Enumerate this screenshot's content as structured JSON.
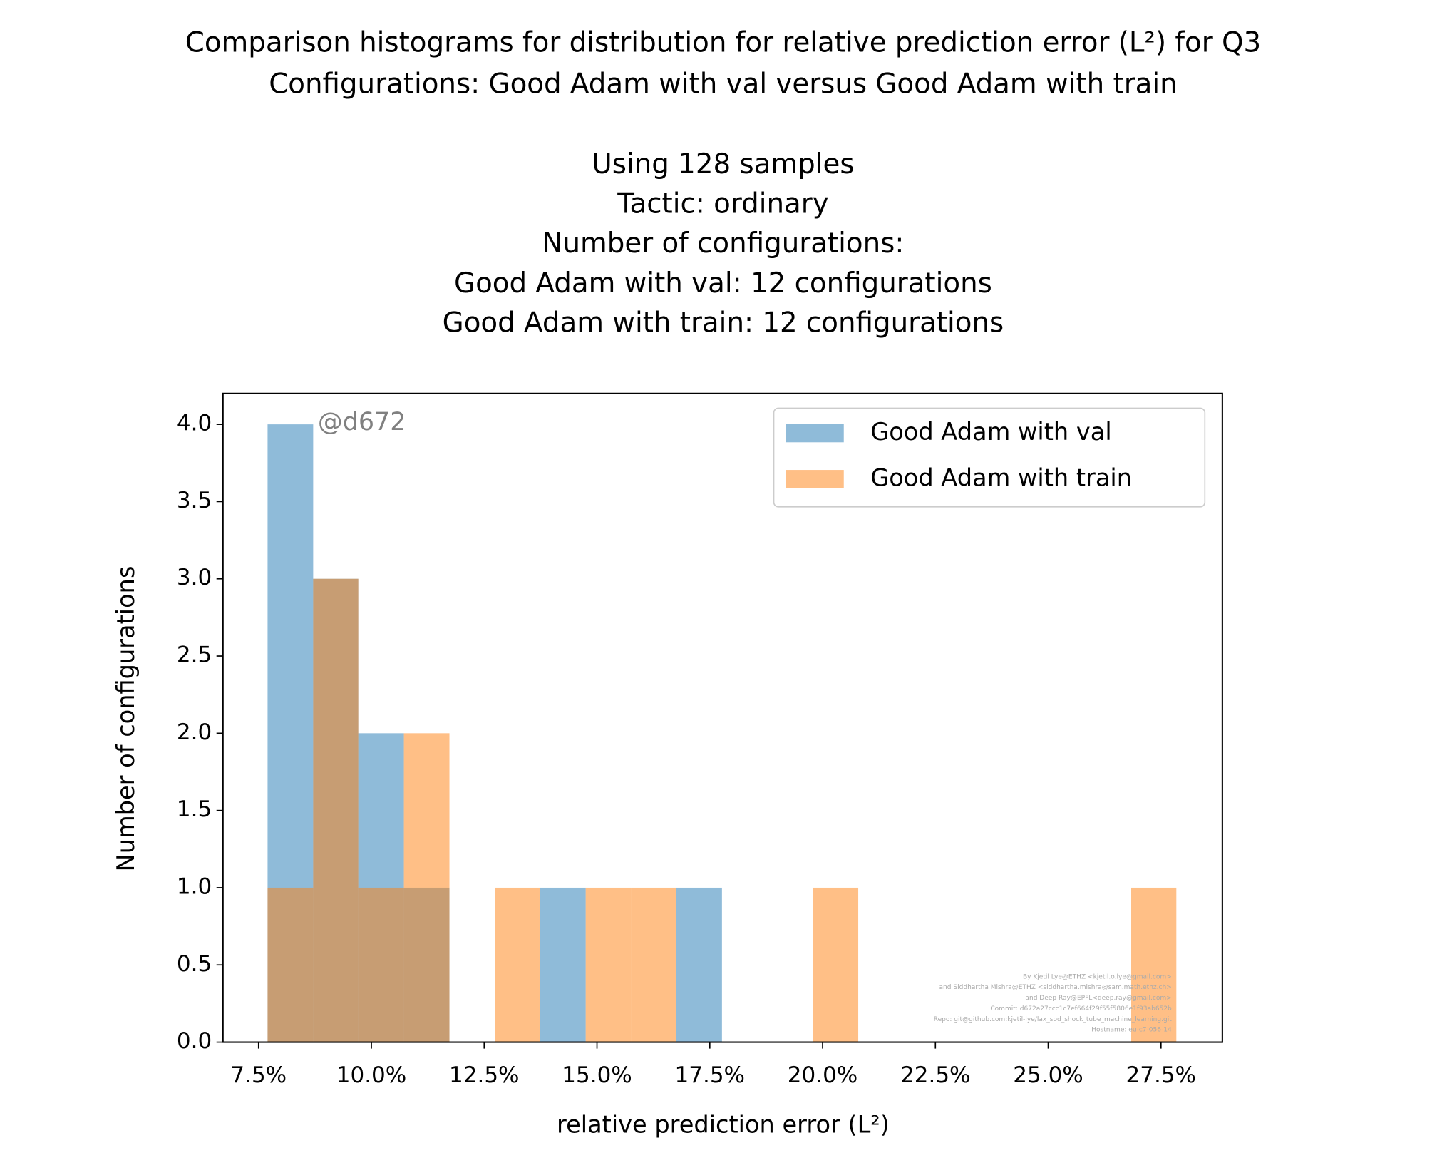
{
  "chart_data": {
    "type": "histogram",
    "title": [
      "Comparison histograms for distribution for relative prediction error (L²) for Q3",
      "Configurations: Good Adam with val versus Good Adam with train"
    ],
    "subtitle": [
      "Using 128 samples",
      "Tactic: ordinary",
      "Number of configurations:",
      "Good Adam with val: 12 configurations",
      "Good Adam with train: 12 configurations"
    ],
    "xlabel": "relative prediction error (L²)",
    "ylabel": "Number of configurations",
    "annotation": "@d672",
    "footer": [
      "By Kjetil Lye@ETHZ <kjetil.o.lye@gmail.com>",
      "and Siddhartha Mishra@ETHZ <siddhartha.mishra@sam.math.ethz.ch>",
      "and Deep Ray@EPFL<deep.ray@gmail.com>",
      "Commit: d672a27ccc1c7ef664f29f55f5806e1f93ab652b",
      "Repo: git@github.com:kjetil-lye/lax_sod_shock_tube_machine_learning.git",
      "Hostname: eu-c7-056-14"
    ],
    "bins": [
      7.7,
      8.71,
      9.71,
      10.72,
      11.73,
      12.74,
      13.74,
      14.75,
      15.76,
      16.76,
      17.77,
      18.78,
      19.79,
      20.79,
      21.8,
      22.81,
      23.81,
      24.82,
      25.83,
      26.84,
      27.84
    ],
    "series": [
      {
        "name": "Good Adam with val",
        "color": "#1f77b4",
        "values": [
          4,
          3,
          2,
          1,
          0,
          0,
          1,
          0,
          0,
          1,
          0,
          0,
          0,
          0,
          0,
          0,
          0,
          0,
          0,
          0
        ]
      },
      {
        "name": "Good Adam with train",
        "color": "#ff7f0e",
        "values": [
          1,
          3,
          1,
          2,
          0,
          1,
          0,
          1,
          1,
          0,
          0,
          0,
          1,
          0,
          0,
          0,
          0,
          0,
          0,
          1
        ]
      }
    ],
    "alpha": 0.5,
    "xlim": [
      6.71,
      28.86
    ],
    "ylim": [
      0,
      4.2
    ],
    "xticks": [
      {
        "value": 7.5,
        "label": "7.5%"
      },
      {
        "value": 10,
        "label": "10.0%"
      },
      {
        "value": 12.5,
        "label": "12.5%"
      },
      {
        "value": 15,
        "label": "15.0%"
      },
      {
        "value": 17.5,
        "label": "17.5%"
      },
      {
        "value": 20,
        "label": "20.0%"
      },
      {
        "value": 22.5,
        "label": "22.5%"
      },
      {
        "value": 25,
        "label": "25.0%"
      },
      {
        "value": 27.5,
        "label": "27.5%"
      }
    ],
    "yticks": [
      {
        "value": 0,
        "label": "0.0"
      },
      {
        "value": 0.5,
        "label": "0.5"
      },
      {
        "value": 1,
        "label": "1.0"
      },
      {
        "value": 1.5,
        "label": "1.5"
      },
      {
        "value": 2,
        "label": "2.0"
      },
      {
        "value": 2.5,
        "label": "2.5"
      },
      {
        "value": 3,
        "label": "3.0"
      },
      {
        "value": 3.5,
        "label": "3.5"
      },
      {
        "value": 4,
        "label": "4.0"
      }
    ],
    "legend": "upper right"
  }
}
